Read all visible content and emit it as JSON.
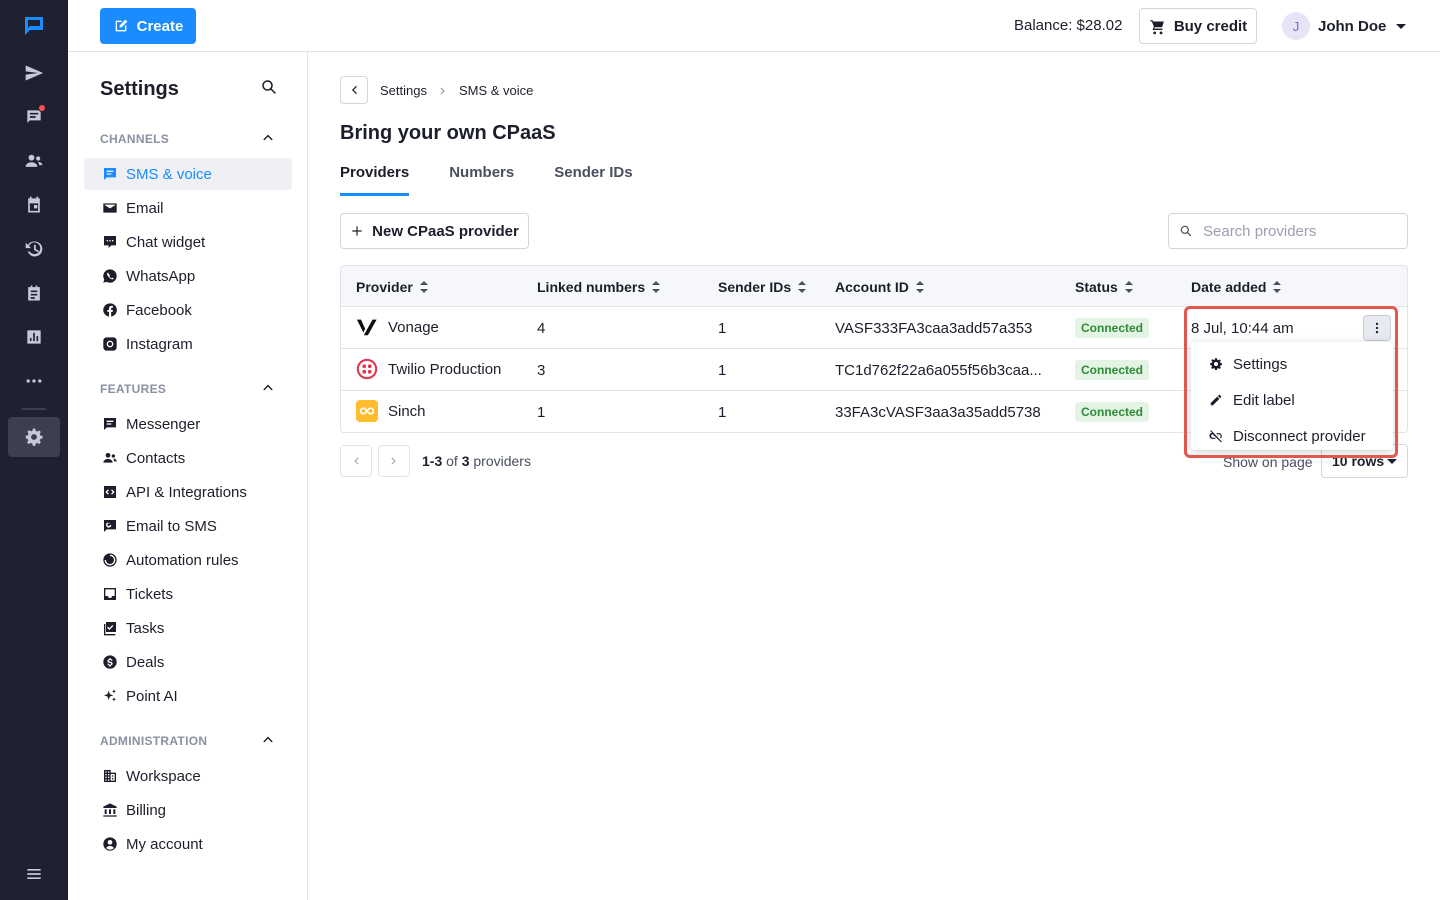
{
  "header": {
    "create_label": "Create",
    "balance": "Balance: $28.02",
    "buy_label": "Buy credit",
    "user_initial": "J",
    "user_name": "John Doe"
  },
  "sidebar": {
    "title": "Settings",
    "sections": [
      {
        "title": "CHANNELS",
        "items": [
          "SMS & voice",
          "Email",
          "Chat widget",
          "WhatsApp",
          "Facebook",
          "Instagram"
        ]
      },
      {
        "title": "FEATURES",
        "items": [
          "Messenger",
          "Contacts",
          "API & Integrations",
          "Email to SMS",
          "Automation rules",
          "Tickets",
          "Tasks",
          "Deals",
          "Point AI"
        ]
      },
      {
        "title": "ADMINISTRATION",
        "items": [
          "Workspace",
          "Billing",
          "My account"
        ]
      }
    ]
  },
  "breadcrumb": [
    "Settings",
    "SMS & voice"
  ],
  "page_title": "Bring your own CPaaS",
  "tabs": [
    "Providers",
    "Numbers",
    "Sender IDs"
  ],
  "new_provider_label": "New CPaaS provider",
  "search_placeholder": "Search providers",
  "table": {
    "columns": [
      "Provider",
      "Linked numbers",
      "Sender IDs",
      "Account ID",
      "Status",
      "Date added"
    ],
    "rows": [
      {
        "provider": "Vonage",
        "linked": "4",
        "sender": "1",
        "account": "VASF333FA3caa3add57a353",
        "status": "Connected",
        "date": "8 Jul, 10:44 am"
      },
      {
        "provider": "Twilio Production",
        "linked": "3",
        "sender": "1",
        "account": "TC1d762f22a6a055f56b3caa...",
        "status": "Connected",
        "date": ""
      },
      {
        "provider": "Sinch",
        "linked": "1",
        "sender": "1",
        "account": "33FA3cVASF3aa3a35add5738",
        "status": "Connected",
        "date": ""
      }
    ]
  },
  "pagination": {
    "range": "1-3",
    "of": "of",
    "total": "3",
    "unit": "providers",
    "show_label": "Show on page",
    "rows_value": "10 rows"
  },
  "menu": [
    "Settings",
    "Edit label",
    "Disconnect provider"
  ],
  "colors": {
    "accent": "#1a8cff",
    "rail": "#1e2130",
    "status_bg": "#e3f4e4",
    "status_text": "#2e8b3a",
    "highlight": "#e2574c"
  }
}
